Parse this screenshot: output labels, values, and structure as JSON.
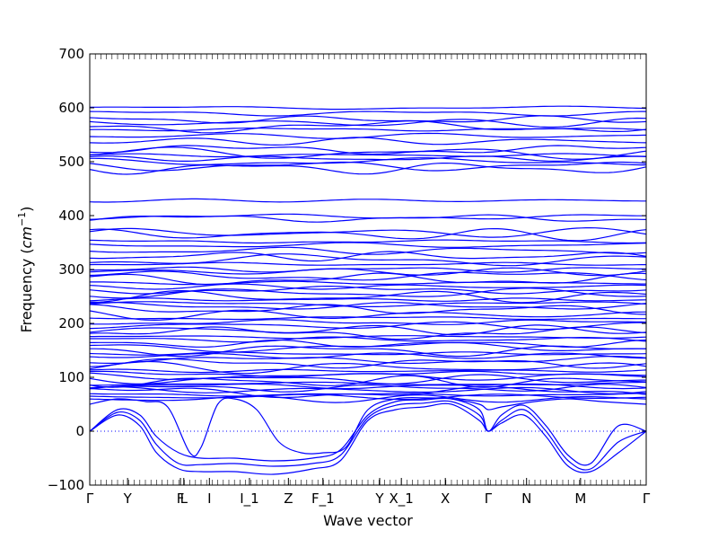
{
  "chart_data": {
    "type": "line",
    "title": "",
    "xlabel": "Wave vector",
    "ylabel_text": "Frequency (",
    "ylabel_unit": "cm",
    "ylabel_exp": "−1",
    "ylabel_close": ")",
    "ylim": [
      -100,
      700
    ],
    "yticks": [
      -100,
      0,
      100,
      200,
      300,
      400,
      500,
      600,
      700
    ],
    "grid": false,
    "line_color": "#0000ff",
    "zero_line_color": "#0000ff",
    "x_ticks": [
      {
        "label": "Γ",
        "pos": 0.0
      },
      {
        "label": "Y",
        "pos": 0.068
      },
      {
        "label": "F",
        "pos": 0.163
      },
      {
        "label": "L",
        "pos": 0.169
      },
      {
        "label": "I",
        "pos": 0.215
      },
      {
        "label": "I_1",
        "pos": 0.287
      },
      {
        "label": "Z",
        "pos": 0.357
      },
      {
        "label": "F_1",
        "pos": 0.419
      },
      {
        "label": "Y",
        "pos": 0.521
      },
      {
        "label": "X_1",
        "pos": 0.56
      },
      {
        "label": "X",
        "pos": 0.639
      },
      {
        "label": "Γ",
        "pos": 0.716
      },
      {
        "label": "N",
        "pos": 0.785
      },
      {
        "label": "M",
        "pos": 0.882
      },
      {
        "label": "Γ",
        "pos": 1.0
      }
    ],
    "flat_bands": [
      600,
      590,
      578,
      572,
      565,
      560,
      548,
      538,
      522,
      516,
      512,
      506,
      500,
      492,
      488,
      428,
      398,
      395,
      368,
      365,
      352,
      345,
      335,
      325,
      318,
      310,
      300,
      296,
      288,
      282,
      275,
      268,
      262,
      256,
      250,
      244,
      236,
      232,
      226,
      216,
      210,
      202,
      196,
      188,
      182,
      175,
      170,
      162,
      156,
      150,
      144,
      140,
      132,
      126,
      118,
      112,
      106,
      102,
      96,
      92,
      88,
      84,
      80,
      76,
      72,
      68,
      64,
      60
    ],
    "acoustic_bands": [
      {
        "x": [
          0,
          0.05,
          0.09,
          0.12,
          0.16,
          0.2,
          0.26,
          0.33,
          0.4,
          0.45,
          0.5,
          0.55,
          0.6,
          0.65,
          0.7,
          0.716,
          0.74,
          0.78,
          0.82,
          0.86,
          0.9,
          0.95,
          1.0
        ],
        "y": [
          0,
          30,
          10,
          -40,
          -70,
          -75,
          -75,
          -80,
          -70,
          -55,
          20,
          40,
          45,
          50,
          20,
          0,
          15,
          30,
          -10,
          -65,
          -75,
          -40,
          0
        ]
      },
      {
        "x": [
          0,
          0.05,
          0.09,
          0.12,
          0.16,
          0.2,
          0.26,
          0.33,
          0.4,
          0.45,
          0.5,
          0.55,
          0.6,
          0.65,
          0.7,
          0.716,
          0.74,
          0.78,
          0.82,
          0.86,
          0.9,
          0.95,
          1.0
        ],
        "y": [
          0,
          35,
          20,
          -25,
          -60,
          -62,
          -60,
          -65,
          -60,
          -45,
          25,
          48,
          52,
          55,
          30,
          0,
          20,
          40,
          0,
          -55,
          -70,
          -20,
          0
        ]
      },
      {
        "x": [
          0,
          0.05,
          0.09,
          0.12,
          0.16,
          0.2,
          0.26,
          0.33,
          0.4,
          0.45,
          0.5,
          0.55,
          0.6,
          0.65,
          0.7,
          0.716,
          0.74,
          0.78,
          0.82,
          0.86,
          0.9,
          0.95,
          1.0
        ],
        "y": [
          0,
          40,
          30,
          -10,
          -40,
          -50,
          -50,
          -55,
          -50,
          -35,
          30,
          55,
          58,
          60,
          40,
          0,
          30,
          48,
          10,
          -45,
          -60,
          10,
          0
        ]
      },
      {
        "x": [
          0,
          0.05,
          0.1,
          0.14,
          0.18,
          0.2,
          0.23,
          0.26,
          0.3,
          0.34,
          0.38,
          0.42,
          0.46,
          0.5,
          0.55,
          0.6,
          0.65,
          0.7,
          0.716,
          0.74,
          0.8,
          0.86,
          0.92,
          1.0
        ],
        "y": [
          50,
          60,
          55,
          45,
          -40,
          -30,
          50,
          60,
          40,
          -20,
          -40,
          -40,
          -30,
          40,
          60,
          62,
          60,
          50,
          40,
          45,
          55,
          60,
          55,
          50
        ]
      }
    ]
  }
}
